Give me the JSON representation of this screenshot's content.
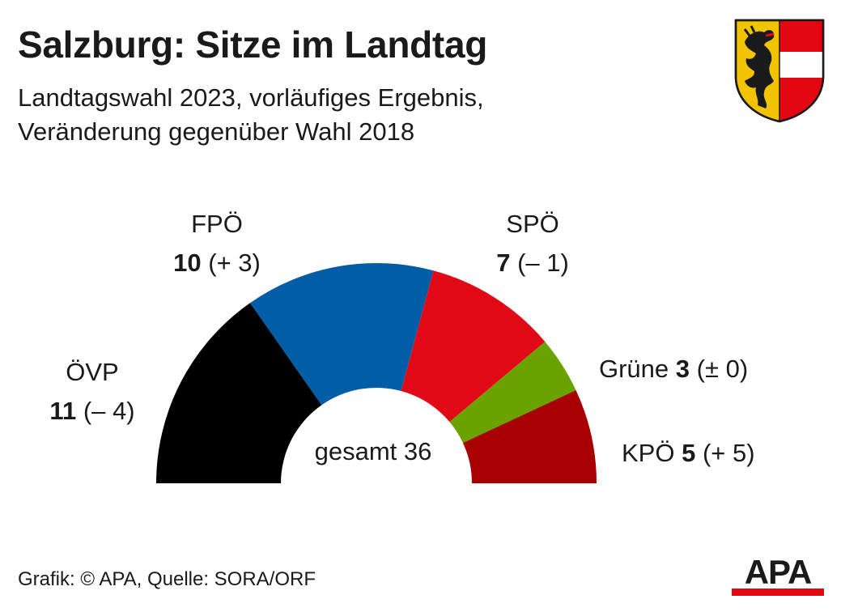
{
  "title": "Salzburg: Sitze im Landtag",
  "subtitle_lines": [
    "Landtagswahl 2023, vorläufiges Ergebnis,",
    "Veränderung gegenüber Wahl 2018"
  ],
  "source": "Grafik: © APA, Quelle: SORA/ORF",
  "logo_text": "APA",
  "crest": {
    "colors": {
      "gold": "#f2c300",
      "red": "#e30613",
      "white": "#ffffff",
      "black": "#1a1a1a"
    },
    "icon": "salzburg-coat-of-arms-icon"
  },
  "chart_data": {
    "type": "pie",
    "variant": "hemicycle",
    "total_label": "gesamt 36",
    "total": 36,
    "series": [
      {
        "party": "ÖVP",
        "seats": 11,
        "change": "(– 4)",
        "color": "#000000"
      },
      {
        "party": "FPÖ",
        "seats": 10,
        "change": "(+ 3)",
        "color": "#005da6"
      },
      {
        "party": "SPÖ",
        "seats": 7,
        "change": "(– 1)",
        "color": "#e10916"
      },
      {
        "party": "Grüne",
        "seats": 3,
        "change": "(± 0)",
        "color": "#6aa200"
      },
      {
        "party": "KPÖ",
        "seats": 5,
        "change": "(+ 5)",
        "color": "#a80000"
      }
    ]
  }
}
